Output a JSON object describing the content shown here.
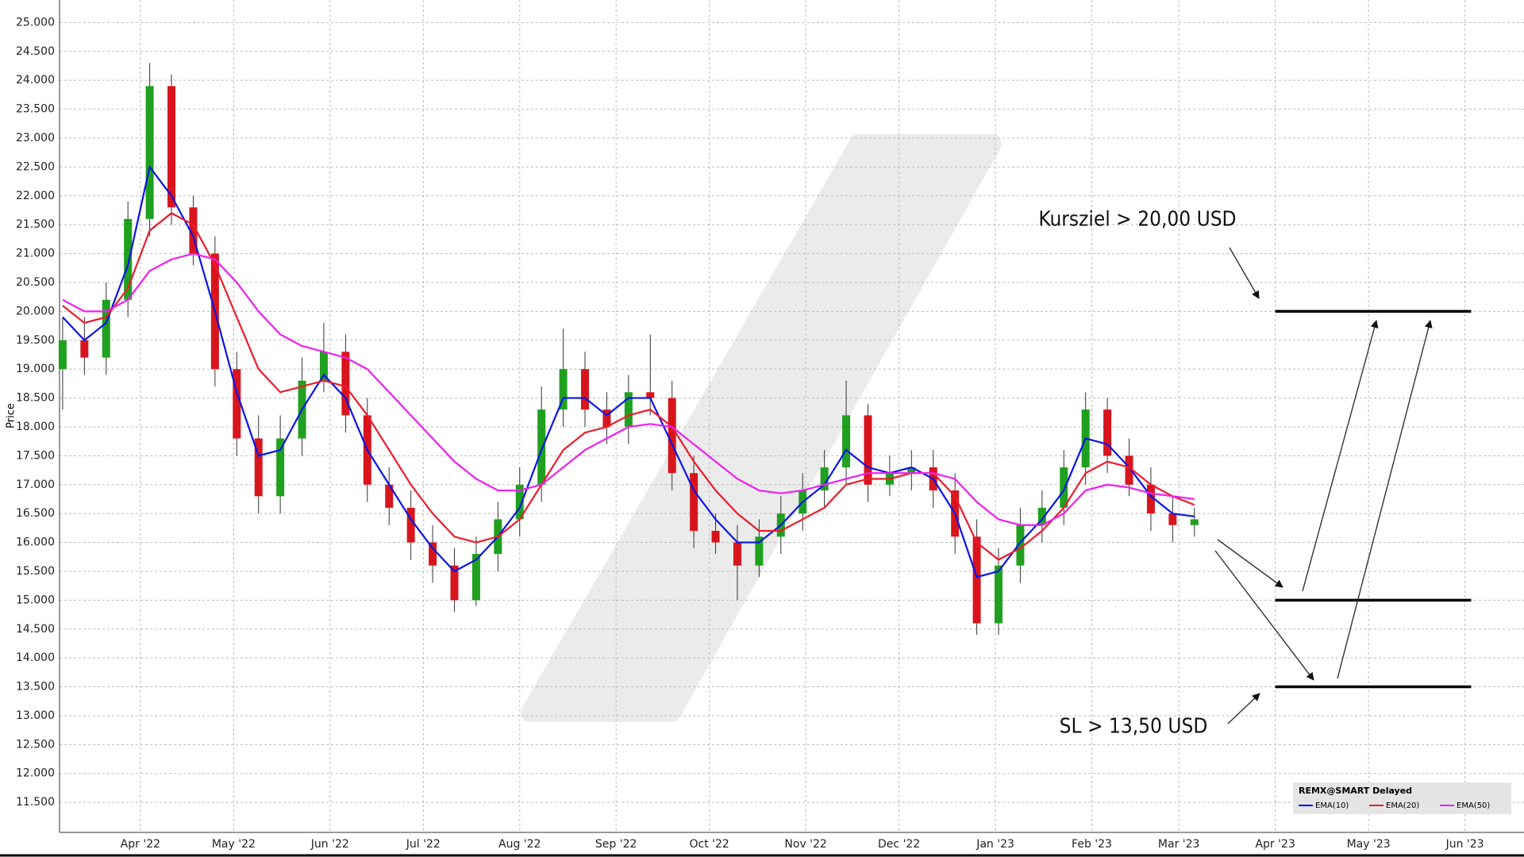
{
  "chart_data": {
    "type": "candlestick",
    "y_label": "Price",
    "x": [
      6,
      13,
      20,
      27,
      34,
      41,
      48,
      55,
      62,
      69,
      76,
      83,
      90,
      97,
      104,
      111,
      118,
      125,
      132,
      139,
      146,
      153,
      160,
      167,
      174,
      181,
      188,
      195,
      202,
      209,
      216,
      223,
      230,
      237,
      244,
      251,
      258,
      265,
      272,
      279,
      286,
      293,
      300,
      307,
      314,
      321,
      328,
      335,
      342,
      349,
      356,
      363,
      370
    ],
    "candles": {
      "open": [
        19.0,
        19.5,
        19.2,
        20.2,
        21.6,
        23.9,
        21.8,
        21.0,
        19.0,
        17.8,
        16.8,
        17.8,
        18.8,
        19.3,
        18.2,
        17.0,
        16.6,
        16.0,
        15.6,
        15.0,
        15.8,
        16.4,
        17.0,
        18.3,
        19.0,
        18.3,
        18.0,
        18.6,
        18.5,
        17.2,
        16.2,
        16.0,
        15.6,
        16.1,
        16.5,
        16.9,
        17.3,
        18.2,
        17.0,
        17.2,
        17.3,
        16.9,
        16.1,
        14.6,
        15.6,
        16.3,
        16.6,
        17.3,
        18.3,
        17.5,
        17.0,
        16.5,
        16.3
      ],
      "high": [
        19.9,
        19.9,
        20.5,
        21.9,
        24.3,
        24.1,
        22.0,
        21.3,
        19.3,
        18.2,
        18.2,
        19.2,
        19.8,
        19.6,
        18.5,
        17.3,
        16.9,
        16.3,
        15.9,
        16.1,
        16.7,
        17.3,
        18.7,
        19.7,
        19.3,
        18.6,
        18.9,
        19.6,
        18.8,
        17.5,
        16.5,
        16.3,
        16.4,
        16.8,
        17.2,
        17.6,
        18.8,
        18.4,
        17.5,
        17.6,
        17.6,
        17.2,
        16.4,
        15.9,
        16.6,
        16.9,
        17.6,
        18.6,
        18.5,
        17.8,
        17.3,
        16.8,
        16.6
      ],
      "low": [
        18.3,
        18.9,
        18.9,
        19.9,
        21.3,
        21.5,
        20.8,
        18.7,
        17.5,
        16.5,
        16.5,
        17.5,
        18.6,
        17.9,
        16.7,
        16.3,
        15.7,
        15.3,
        14.8,
        14.9,
        15.5,
        16.1,
        16.7,
        18.0,
        18.0,
        17.7,
        17.7,
        18.2,
        16.9,
        15.9,
        15.8,
        15.0,
        15.4,
        15.8,
        16.2,
        16.6,
        17.0,
        16.7,
        16.8,
        16.9,
        16.6,
        15.8,
        14.4,
        14.4,
        15.3,
        16.0,
        16.3,
        17.0,
        17.2,
        16.8,
        16.2,
        16.0,
        16.1
      ],
      "close": [
        19.5,
        19.2,
        20.2,
        21.6,
        23.9,
        21.8,
        21.0,
        19.0,
        17.8,
        16.8,
        17.8,
        18.8,
        19.3,
        18.2,
        17.0,
        16.6,
        16.0,
        15.6,
        15.0,
        15.8,
        16.4,
        17.0,
        18.3,
        19.0,
        18.3,
        18.0,
        18.6,
        18.5,
        17.2,
        16.2,
        16.0,
        15.6,
        16.1,
        16.5,
        16.9,
        17.3,
        18.2,
        17.0,
        17.2,
        17.3,
        16.9,
        16.1,
        14.6,
        15.6,
        16.3,
        16.6,
        17.3,
        18.3,
        17.5,
        17.0,
        16.5,
        16.3,
        16.4
      ],
      "up_color": "#1fa01f",
      "down_color": "#d8151c"
    },
    "series": [
      {
        "name": "EMA(10)",
        "color": "#0a14e6",
        "values": [
          19.9,
          19.5,
          19.8,
          20.8,
          22.5,
          22.0,
          21.3,
          20.0,
          18.6,
          17.5,
          17.6,
          18.3,
          18.9,
          18.5,
          17.6,
          17.0,
          16.4,
          15.9,
          15.5,
          15.7,
          16.1,
          16.6,
          17.6,
          18.5,
          18.5,
          18.2,
          18.5,
          18.5,
          17.7,
          16.9,
          16.4,
          16.0,
          16.0,
          16.3,
          16.7,
          17.0,
          17.6,
          17.3,
          17.2,
          17.3,
          17.1,
          16.5,
          15.4,
          15.5,
          16.0,
          16.4,
          16.9,
          17.8,
          17.7,
          17.3,
          16.8,
          16.5,
          16.45
        ]
      },
      {
        "name": "EMA(20)",
        "color": "#ec1c2c",
        "values": [
          20.1,
          19.8,
          19.9,
          20.4,
          21.4,
          21.7,
          21.5,
          20.8,
          19.9,
          19.0,
          18.6,
          18.7,
          18.8,
          18.7,
          18.2,
          17.6,
          17.0,
          16.5,
          16.1,
          16.0,
          16.1,
          16.4,
          17.0,
          17.6,
          17.9,
          18.0,
          18.2,
          18.3,
          18.0,
          17.4,
          16.9,
          16.5,
          16.2,
          16.2,
          16.4,
          16.6,
          17.0,
          17.1,
          17.1,
          17.2,
          17.2,
          16.8,
          16.0,
          15.7,
          15.9,
          16.2,
          16.6,
          17.2,
          17.4,
          17.3,
          17.0,
          16.8,
          16.65
        ]
      },
      {
        "name": "EMA(50)",
        "color": "#f01ef0",
        "values": [
          20.2,
          20.0,
          20.0,
          20.2,
          20.7,
          20.9,
          21.0,
          20.9,
          20.5,
          20.0,
          19.6,
          19.4,
          19.3,
          19.2,
          19.0,
          18.6,
          18.2,
          17.8,
          17.4,
          17.1,
          16.9,
          16.9,
          17.0,
          17.3,
          17.6,
          17.8,
          18.0,
          18.05,
          18.0,
          17.7,
          17.4,
          17.1,
          16.9,
          16.85,
          16.9,
          17.0,
          17.1,
          17.2,
          17.2,
          17.2,
          17.2,
          17.1,
          16.7,
          16.4,
          16.3,
          16.3,
          16.5,
          16.9,
          17.0,
          16.95,
          16.85,
          16.8,
          16.75
        ]
      }
    ],
    "xlim": [
      5,
      476
    ],
    "xticks": [
      {
        "value": 31,
        "label": "Apr '22"
      },
      {
        "value": 61,
        "label": "May '22"
      },
      {
        "value": 92,
        "label": "Jun '22"
      },
      {
        "value": 122,
        "label": "Jul '22"
      },
      {
        "value": 153,
        "label": "Aug '22"
      },
      {
        "value": 184,
        "label": "Sep '22"
      },
      {
        "value": 214,
        "label": "Oct '22"
      },
      {
        "value": 245,
        "label": "Nov '22"
      },
      {
        "value": 275,
        "label": "Dec '22"
      },
      {
        "value": 306,
        "label": "Jan '23"
      },
      {
        "value": 337,
        "label": "Feb '23"
      },
      {
        "value": 365,
        "label": "Mar '23"
      },
      {
        "value": 396,
        "label": "Apr '23"
      },
      {
        "value": 426,
        "label": "May '23"
      },
      {
        "value": 457,
        "label": "Jun '23"
      }
    ],
    "ylim": [
      10.98,
      25.39
    ],
    "yticks": [
      {
        "value": 11.5,
        "label": "11.500"
      },
      {
        "value": 12,
        "label": "12.000"
      },
      {
        "value": 12.5,
        "label": "12.500"
      },
      {
        "value": 13,
        "label": "13.000"
      },
      {
        "value": 13.5,
        "label": "13.500"
      },
      {
        "value": 14,
        "label": "14.000"
      },
      {
        "value": 14.5,
        "label": "14.500"
      },
      {
        "value": 15,
        "label": "15.000"
      },
      {
        "value": 15.5,
        "label": "15.500"
      },
      {
        "value": 16,
        "label": "16.000"
      },
      {
        "value": 16.5,
        "label": "16.500"
      },
      {
        "value": 17,
        "label": "17.000"
      },
      {
        "value": 17.5,
        "label": "17.500"
      },
      {
        "value": 18,
        "label": "18.000"
      },
      {
        "value": 18.5,
        "label": "18.500"
      },
      {
        "value": 19,
        "label": "19.000"
      },
      {
        "value": 19.5,
        "label": "19.500"
      },
      {
        "value": 20,
        "label": "20.000"
      },
      {
        "value": 20.5,
        "label": "20.500"
      },
      {
        "value": 21,
        "label": "21.000"
      },
      {
        "value": 21.5,
        "label": "21.500"
      },
      {
        "value": 22,
        "label": "22.000"
      },
      {
        "value": 22.5,
        "label": "22.500"
      },
      {
        "value": 23,
        "label": "23.000"
      },
      {
        "value": 23.5,
        "label": "23.500"
      },
      {
        "value": 24,
        "label": "24.000"
      },
      {
        "value": 24.5,
        "label": "24.500"
      },
      {
        "value": 25,
        "label": "25.000"
      }
    ],
    "grid": true,
    "levels": [
      20,
      15,
      13.5
    ],
    "level_x": [
      396,
      459
    ],
    "annotations": [
      "Kursziel > 20,00 USD",
      "SL > 13,50 USD"
    ],
    "legend_title": "REMX@SMART Delayed",
    "legend": "lower right"
  }
}
